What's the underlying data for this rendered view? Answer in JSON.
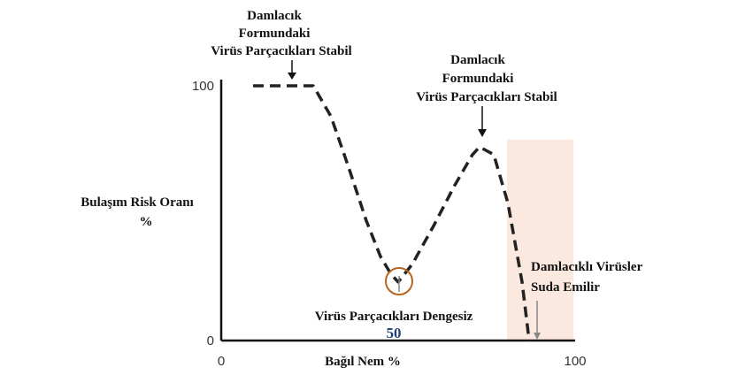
{
  "chart_data": {
    "type": "line",
    "annotations": {
      "top_left": [
        "Damlacık",
        "Formundaki",
        "Virüs Parçacıkları Stabil"
      ],
      "top_right": [
        "Damlacık",
        "Formundaki",
        "Virüs Parçacıkları Stabil"
      ],
      "bottom": "Virüs Parçacıkları Dengesiz",
      "bottom_value": "50",
      "right": [
        "Damlacıklı Virüsler",
        "Suda Emilir"
      ]
    },
    "xlabel": "Bağıl Nem %",
    "ylabel": [
      "Bulaşım Risk Oranı",
      "%"
    ],
    "x": [
      9,
      20,
      26,
      31,
      36,
      41,
      45,
      48,
      50,
      54,
      60,
      66,
      71,
      73,
      77,
      81,
      85,
      87
    ],
    "series": [
      {
        "color": "#222222",
        "values": [
          100,
          100,
          100,
          88,
          68,
          47,
          33,
          26,
          23,
          30,
          45,
          61,
          73,
          76,
          73,
          54,
          23,
          0
        ]
      }
    ],
    "xlim": [
      0,
      100
    ],
    "ylim": [
      0,
      100
    ],
    "xticks": [
      0,
      100
    ],
    "yticks": [
      0,
      100
    ]
  }
}
